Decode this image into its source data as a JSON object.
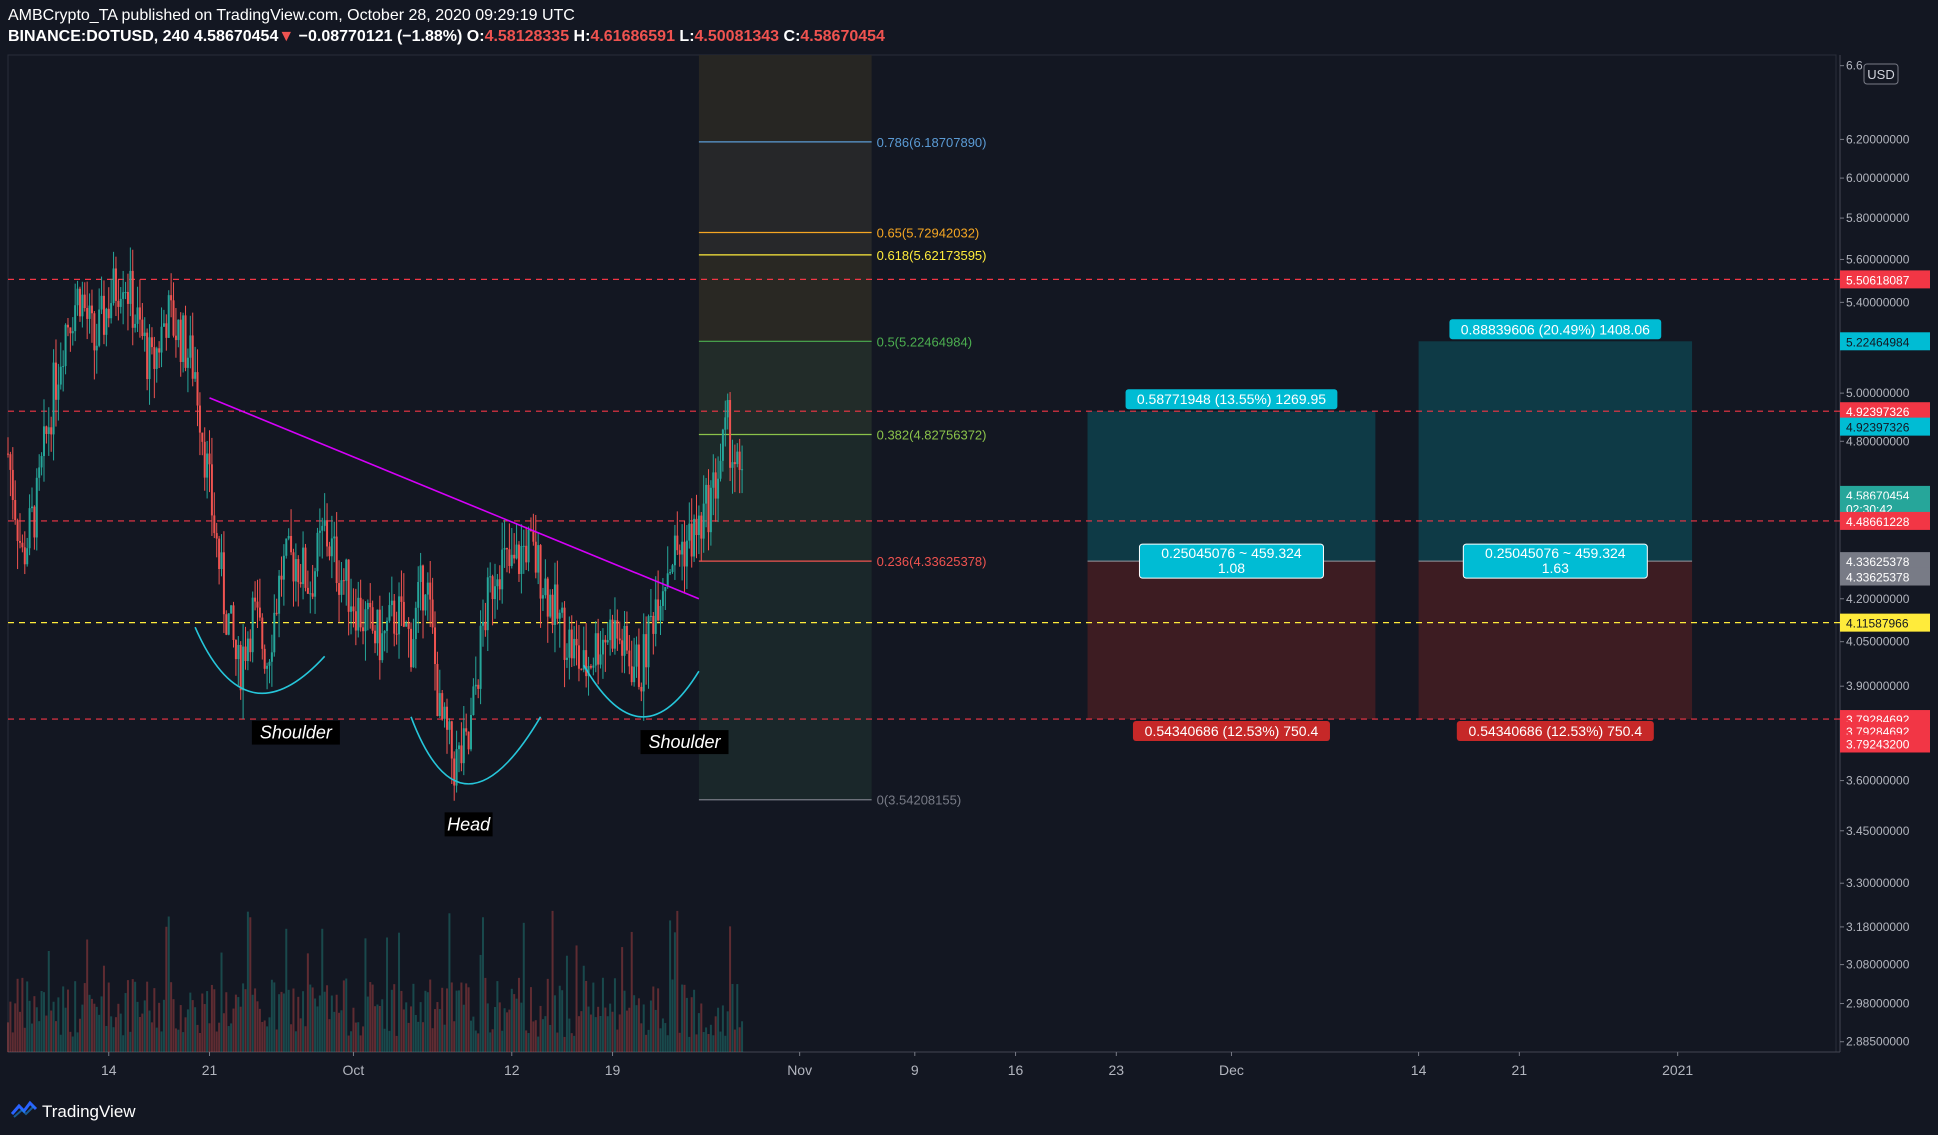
{
  "header": {
    "author_line": "AMBCrypto_TA published on TradingView.com, October 28, 2020 09:29:19 UTC",
    "symbol": "BINANCE:DOTUSD, 240",
    "last": "4.58670454",
    "change_arrow": "▼",
    "change": "−0.08770121 (−1.88%)",
    "o_label": "O:",
    "o": "4.58128335",
    "h_label": "H:",
    "h": "4.61686591",
    "l_label": "L:",
    "l": "4.50081343",
    "c_label": "C:",
    "c": "4.58670454"
  },
  "footer": {
    "brand": "TradingView",
    "logo": "tradingview-logo-icon"
  },
  "colors": {
    "background": "#131722",
    "up": "#26a69a",
    "down": "#ef5350",
    "trendline": "#d500f9",
    "pattern": "#26c6da",
    "support": "#ffeb3b",
    "resistance": "#f23645",
    "target": "#00bcd4",
    "stop": "#b71c1c"
  },
  "chart_data": {
    "type": "candlestick",
    "currency": "USD",
    "y_axis": {
      "scale": "log",
      "range": [
        2.86,
        6.66
      ],
      "ticks": [
        "6.6",
        "6.20000000",
        "6.00000000",
        "5.80000000",
        "5.60000000",
        "5.40000000",
        "5.00000000",
        "4.80000000",
        "4.20000000",
        "4.05000000",
        "3.90000000",
        "3.60000000",
        "3.45000000",
        "3.30000000",
        "3.18000000",
        "3.08000000",
        "2.98000000",
        "2.88500000"
      ],
      "tick_values": [
        6.6,
        6.2,
        6.0,
        5.8,
        5.6,
        5.4,
        5.0,
        4.8,
        4.2,
        4.05,
        3.9,
        3.6,
        3.45,
        3.3,
        3.18,
        3.08,
        2.98,
        2.885
      ]
    },
    "x_axis": {
      "range": [
        "2020-09-07",
        "2021-01-12"
      ],
      "ticks": [
        {
          "label": "14",
          "date": "2020-09-14"
        },
        {
          "label": "21",
          "date": "2020-09-21"
        },
        {
          "label": "Oct",
          "date": "2020-10-01"
        },
        {
          "label": "12",
          "date": "2020-10-12"
        },
        {
          "label": "19",
          "date": "2020-10-19"
        },
        {
          "label": "Nov",
          "date": "2020-11-01"
        },
        {
          "label": "9",
          "date": "2020-11-09"
        },
        {
          "label": "16",
          "date": "2020-11-16"
        },
        {
          "label": "23",
          "date": "2020-11-23"
        },
        {
          "label": "Dec",
          "date": "2020-12-01"
        },
        {
          "label": "14",
          "date": "2020-12-14"
        },
        {
          "label": "21",
          "date": "2020-12-21"
        },
        {
          "label": "2021",
          "date": "2021-01-01"
        }
      ]
    },
    "price_path": [
      {
        "date": "2020-09-07",
        "close": 4.75
      },
      {
        "date": "2020-09-08",
        "close": 4.35
      },
      {
        "date": "2020-09-09",
        "close": 4.55
      },
      {
        "date": "2020-09-10",
        "close": 4.95
      },
      {
        "date": "2020-09-11",
        "close": 5.3
      },
      {
        "date": "2020-09-12",
        "close": 5.45
      },
      {
        "date": "2020-09-13",
        "close": 5.2
      },
      {
        "date": "2020-09-14",
        "close": 5.4
      },
      {
        "date": "2020-09-15",
        "close": 5.55
      },
      {
        "date": "2020-09-16",
        "close": 5.3
      },
      {
        "date": "2020-09-17",
        "close": 5.1
      },
      {
        "date": "2020-09-18",
        "close": 5.35
      },
      {
        "date": "2020-09-19",
        "close": 5.25
      },
      {
        "date": "2020-09-20",
        "close": 5.1
      },
      {
        "date": "2020-09-21",
        "close": 4.6
      },
      {
        "date": "2020-09-22",
        "close": 4.2
      },
      {
        "date": "2020-09-23",
        "close": 3.95
      },
      {
        "date": "2020-09-24",
        "close": 4.15
      },
      {
        "date": "2020-09-25",
        "close": 4.0
      },
      {
        "date": "2020-09-26",
        "close": 4.3
      },
      {
        "date": "2020-09-27",
        "close": 4.35
      },
      {
        "date": "2020-09-28",
        "close": 4.25
      },
      {
        "date": "2020-09-29",
        "close": 4.45
      },
      {
        "date": "2020-09-30",
        "close": 4.3
      },
      {
        "date": "2020-10-01",
        "close": 4.2
      },
      {
        "date": "2020-10-02",
        "close": 4.1
      },
      {
        "date": "2020-10-03",
        "close": 4.05
      },
      {
        "date": "2020-10-04",
        "close": 4.15
      },
      {
        "date": "2020-10-05",
        "close": 4.05
      },
      {
        "date": "2020-10-06",
        "close": 4.3
      },
      {
        "date": "2020-10-07",
        "close": 3.8
      },
      {
        "date": "2020-10-08",
        "close": 3.65
      },
      {
        "date": "2020-10-09",
        "close": 3.7
      },
      {
        "date": "2020-10-10",
        "close": 4.1
      },
      {
        "date": "2020-10-11",
        "close": 4.35
      },
      {
        "date": "2020-10-12",
        "close": 4.3
      },
      {
        "date": "2020-10-13",
        "close": 4.4
      },
      {
        "date": "2020-10-14",
        "close": 4.3
      },
      {
        "date": "2020-10-15",
        "close": 4.15
      },
      {
        "date": "2020-10-16",
        "close": 4.05
      },
      {
        "date": "2020-10-17",
        "close": 3.95
      },
      {
        "date": "2020-10-18",
        "close": 4.05
      },
      {
        "date": "2020-10-19",
        "close": 4.1
      },
      {
        "date": "2020-10-20",
        "close": 4.0
      },
      {
        "date": "2020-10-21",
        "close": 3.95
      },
      {
        "date": "2020-10-22",
        "close": 4.2
      },
      {
        "date": "2020-10-23",
        "close": 4.35
      },
      {
        "date": "2020-10-24",
        "close": 4.4
      },
      {
        "date": "2020-10-25",
        "close": 4.45
      },
      {
        "date": "2020-10-26",
        "close": 4.6
      },
      {
        "date": "2020-10-27",
        "close": 4.85
      },
      {
        "date": "2020-10-28",
        "close": 4.587
      }
    ],
    "fibonacci": {
      "start_date": "2020-10-25",
      "end_date": "2020-11-06",
      "levels": [
        {
          "ratio": "0.786",
          "value": "6.18707890",
          "price": 6.1870789,
          "color": "#5b9bd5"
        },
        {
          "ratio": "0.65",
          "value": "5.72942032",
          "price": 5.72942032,
          "color": "#f5a623"
        },
        {
          "ratio": "0.618",
          "value": "5.62173595",
          "price": 5.62173595,
          "color": "#ffeb3b"
        },
        {
          "ratio": "0.5",
          "value": "5.22464984",
          "price": 5.22464984,
          "color": "#4caf50"
        },
        {
          "ratio": "0.382",
          "value": "4.82756372",
          "price": 4.82756372,
          "color": "#8bc34a"
        },
        {
          "ratio": "0.236",
          "value": "4.33625378",
          "price": 4.33625378,
          "color": "#ef5350"
        },
        {
          "ratio": "0",
          "value": "3.54208155",
          "price": 3.54208155,
          "color": "#787b86"
        }
      ]
    },
    "horizontal_lines": [
      {
        "price": 5.50618087,
        "style": "dashed",
        "color": "#f23645"
      },
      {
        "price": 4.92397326,
        "style": "dashed",
        "color": "#f23645"
      },
      {
        "price": 4.48661228,
        "style": "dashed",
        "color": "#f23645"
      },
      {
        "price": 4.11587966,
        "style": "dashed",
        "color": "#ffeb3b"
      },
      {
        "price": 3.79284692,
        "style": "dashed",
        "color": "#f23645"
      }
    ],
    "trendline": {
      "from": {
        "date": "2020-09-21",
        "price": 4.98
      },
      "to": {
        "date": "2020-10-25",
        "price": 4.2
      }
    },
    "annotations": [
      {
        "text": "Shoulder",
        "date": "2020-09-27",
        "price": 3.74
      },
      {
        "text": "Head",
        "date": "2020-10-09",
        "price": 3.46
      },
      {
        "text": "Shoulder",
        "date": "2020-10-24",
        "price": 3.71
      }
    ],
    "pattern_curves": [
      {
        "from": {
          "date": "2020-09-20",
          "price": 4.1
        },
        "bottom": {
          "date": "2020-09-24",
          "price": 3.88
        },
        "to": {
          "date": "2020-09-29",
          "price": 4.0
        }
      },
      {
        "from": {
          "date": "2020-10-05",
          "price": 3.8
        },
        "bottom": {
          "date": "2020-10-09",
          "price": 3.59
        },
        "to": {
          "date": "2020-10-14",
          "price": 3.8
        }
      },
      {
        "from": {
          "date": "2020-10-17",
          "price": 3.97
        },
        "bottom": {
          "date": "2020-10-21",
          "price": 3.8
        },
        "to": {
          "date": "2020-10-25",
          "price": 3.95
        }
      }
    ],
    "positions": [
      {
        "start_date": "2020-11-21",
        "end_date": "2020-12-11",
        "entry": 4.33625378,
        "target": 4.92397326,
        "stop": 3.79284692,
        "target_label": "0.58771948 (13.55%) 1269.95",
        "center_label": "0.25045076 ~ 459.324",
        "ratio": "1.08",
        "stop_label": "0.54340686 (12.53%) 750.4"
      },
      {
        "start_date": "2020-12-14",
        "end_date": "2021-01-02",
        "entry": 4.33625378,
        "target": 5.22464984,
        "stop": 3.79284692,
        "target_label": "0.88839606 (20.49%) 1408.06",
        "center_label": "0.25045076 ~ 459.324",
        "ratio": "1.63",
        "stop_label": "0.54340686 (12.53%) 750.4"
      }
    ],
    "price_labels": [
      {
        "text": "5.50618087",
        "price": 5.50618087,
        "bg": "#f23645",
        "fg": "#ffffff"
      },
      {
        "text": "5.22464984",
        "price": 5.22464984,
        "bg": "#00bcd4",
        "fg": "#131722"
      },
      {
        "text": "4.92397326",
        "price": 4.92397326,
        "bg": "#f23645",
        "fg": "#ffffff"
      },
      {
        "text": "4.92397326",
        "price": 4.86,
        "bg": "#00bcd4",
        "fg": "#131722"
      },
      {
        "text": "4.58670454",
        "price": 4.58670454,
        "bg": "#26a69a",
        "fg": "#ffffff"
      },
      {
        "text": "02:30:42",
        "price": 4.535,
        "bg": "#26a69a",
        "fg": "#ffffff"
      },
      {
        "text": "4.48661228",
        "price": 4.48661228,
        "bg": "#f23645",
        "fg": "#ffffff"
      },
      {
        "text": "4.33625378",
        "price": 4.33625378,
        "bg": "#787b86",
        "fg": "#ffffff"
      },
      {
        "text": "4.33625378",
        "price": 4.28,
        "bg": "#787b86",
        "fg": "#ffffff"
      },
      {
        "text": "4.11587966",
        "price": 4.11587966,
        "bg": "#ffeb3b",
        "fg": "#131722"
      },
      {
        "text": "3.79284692",
        "price": 3.79284692,
        "bg": "#f23645",
        "fg": "#ffffff"
      },
      {
        "text": "3.79284692",
        "price": 3.755,
        "bg": "#f23645",
        "fg": "#ffffff"
      },
      {
        "text": "3.79243200",
        "price": 3.715,
        "bg": "#f23645",
        "fg": "#ffffff"
      }
    ]
  }
}
